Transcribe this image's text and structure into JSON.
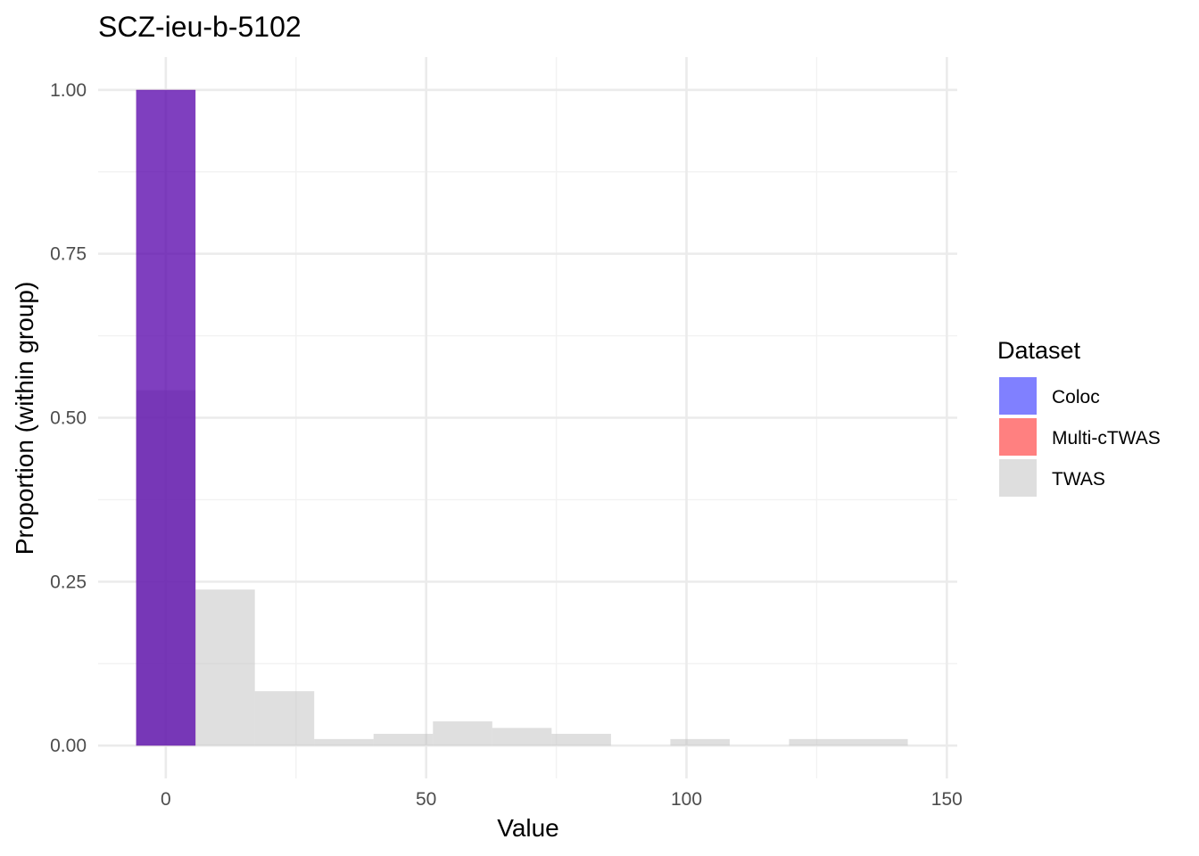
{
  "chart_data": {
    "type": "bar",
    "title": "SCZ-ieu-b-5102",
    "xlabel": "Value",
    "ylabel": "Proportion (within group)",
    "xlim": [
      -13,
      152
    ],
    "ylim": [
      -0.05,
      1.05
    ],
    "x_ticks": [
      0,
      50,
      100,
      150
    ],
    "x_tick_labels": [
      "0",
      "50",
      "100",
      "150"
    ],
    "y_ticks": [
      0,
      0.25,
      0.5,
      0.75,
      1.0
    ],
    "y_tick_labels": [
      "0.00",
      "0.25",
      "0.50",
      "0.75",
      "1.00"
    ],
    "grid": true,
    "bin_width": 11.4,
    "legend": {
      "title": "Dataset",
      "placement": "right",
      "entries": [
        {
          "name": "Coloc",
          "color": "#8080ff"
        },
        {
          "name": "Multi-cTWAS",
          "color": "#ff8080"
        },
        {
          "name": "TWAS",
          "color": "#dedede"
        }
      ]
    },
    "series": [
      {
        "name": "TWAS",
        "color": "#c0c0c0",
        "opacity": 0.5,
        "bins": [
          {
            "x": 0,
            "value": 0.542
          },
          {
            "x": 11.4,
            "value": 0.238
          },
          {
            "x": 22.8,
            "value": 0.083
          },
          {
            "x": 34.2,
            "value": 0.01
          },
          {
            "x": 45.6,
            "value": 0.018
          },
          {
            "x": 57.0,
            "value": 0.037
          },
          {
            "x": 68.4,
            "value": 0.027
          },
          {
            "x": 79.8,
            "value": 0.018
          },
          {
            "x": 102.6,
            "value": 0.01
          },
          {
            "x": 125.4,
            "value": 0.01
          },
          {
            "x": 136.8,
            "value": 0.01
          }
        ]
      },
      {
        "name": "Multi-cTWAS",
        "color": "#ff0000",
        "opacity": 0.5,
        "bins": [
          {
            "x": 0,
            "value": 1.0
          }
        ]
      },
      {
        "name": "Coloc",
        "color": "#0000ff",
        "opacity": 0.5,
        "bins": [
          {
            "x": 0,
            "value": 1.0
          }
        ]
      }
    ]
  }
}
